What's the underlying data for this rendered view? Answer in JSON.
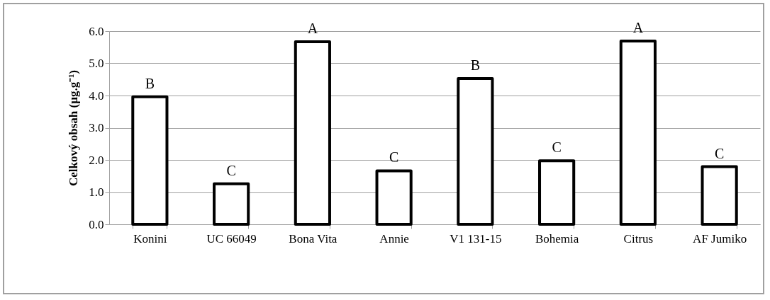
{
  "chart_data": {
    "type": "bar",
    "ylabel": "Celkový obsah (µg.g⁻¹)",
    "categories": [
      "Konini",
      "UC 66049",
      "Bona Vita",
      "Annie",
      "V1 131-15",
      "Bohemia",
      "Citrus",
      "AF Jumiko"
    ],
    "values": [
      3.96,
      1.26,
      5.67,
      1.66,
      4.53,
      1.97,
      5.69,
      1.79
    ],
    "color": "#ffffff",
    "ylim": [
      0,
      6
    ],
    "yticks": [
      {
        "value": 0,
        "label": "0.0"
      },
      {
        "value": 1,
        "label": "1.0"
      },
      {
        "value": 2,
        "label": "2.0"
      },
      {
        "value": 3,
        "label": "3.0"
      },
      {
        "value": 4,
        "label": "4.0"
      },
      {
        "value": 5,
        "label": "5.0"
      },
      {
        "value": 6,
        "label": "6.0"
      }
    ],
    "grid": "y",
    "annotations": [
      {
        "text": "B",
        "x": "Konini",
        "y": 3.96
      },
      {
        "text": "C",
        "x": "UC 66049",
        "y": 1.26
      },
      {
        "text": "A",
        "x": "Bona Vita",
        "y": 5.67
      },
      {
        "text": "C",
        "x": "Annie",
        "y": 1.66
      },
      {
        "text": "B",
        "x": "V1 131-15",
        "y": 4.53
      },
      {
        "text": "C",
        "x": "Bohemia",
        "y": 1.97
      },
      {
        "text": "A",
        "x": "Citrus",
        "y": 5.69
      },
      {
        "text": "C",
        "x": "AF Jumiko",
        "y": 1.79
      }
    ]
  }
}
